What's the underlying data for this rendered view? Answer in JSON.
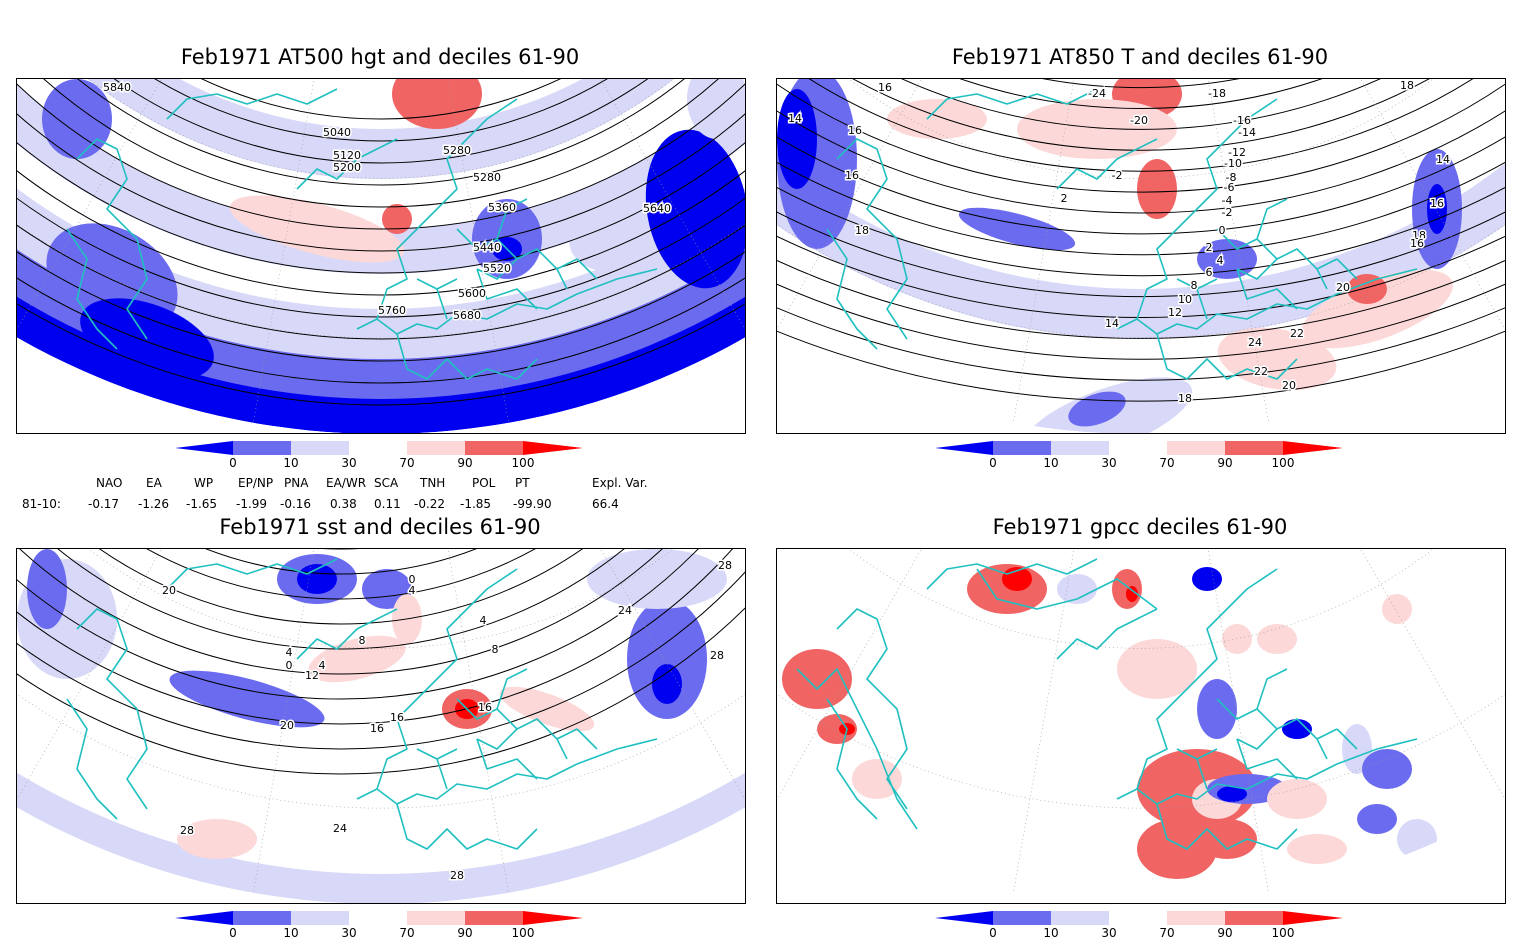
{
  "panels": [
    {
      "title": "Feb1971 AT500 hgt and deciles 61-90",
      "contour_labels": [
        "5840",
        "5040",
        "5120",
        "5200",
        "5280",
        "5280",
        "5360",
        "5440",
        "5520",
        "5600",
        "5680",
        "5760",
        "5640"
      ]
    },
    {
      "title": "Feb1971 AT850 T and deciles 61-90",
      "contour_labels": [
        "16",
        "14",
        "16",
        "16",
        "18",
        "-18",
        "-16",
        "-14",
        "-12",
        "-10",
        "-8",
        "-6",
        "-4",
        "-2",
        "0",
        "2",
        "4",
        "6",
        "8",
        "10",
        "12",
        "14",
        "16",
        "18",
        "20",
        "22",
        "24",
        "22",
        "20",
        "18",
        "16",
        "14",
        "18",
        "-24",
        "-20",
        "2",
        "-2"
      ]
    },
    {
      "title": "Feb1971 sst and deciles 61-90",
      "contour_labels": [
        "20",
        "28",
        "0",
        "4",
        "8",
        "4",
        "0",
        "4",
        "12",
        "16",
        "20",
        "16",
        "24",
        "28",
        "28",
        "24",
        "28",
        "4",
        "8",
        "16"
      ]
    },
    {
      "title": "Feb1971 gpcc deciles 61-90",
      "contour_labels": []
    }
  ],
  "colorbar": {
    "labels": [
      "0",
      "10",
      "30",
      "70",
      "90",
      "100"
    ],
    "colors": [
      "#0000f0",
      "#6b6bf0",
      "#d8d8f8",
      "#ffffff",
      "#fcd8d8",
      "#f06464",
      "#ff0000"
    ]
  },
  "indices": {
    "headers": [
      "NAO",
      "EA",
      "WP",
      "EP/NP",
      "PNA",
      "EA/WR",
      "SCA",
      "TNH",
      "POL",
      "PT",
      "Expl. Var."
    ],
    "row_label": "81-10:",
    "values": [
      "-0.17",
      "-1.26",
      "-1.65",
      "-1.99",
      "-0.16",
      "0.38",
      "0.11",
      "-0.22",
      "-1.85",
      "-99.90",
      "66.4"
    ]
  }
}
